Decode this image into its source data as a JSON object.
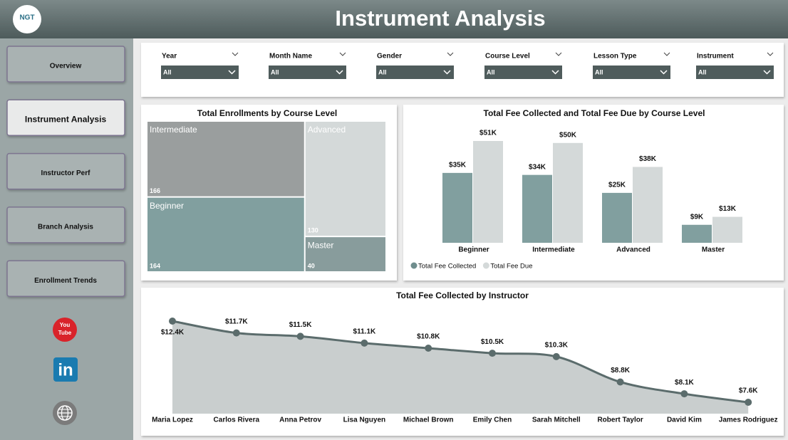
{
  "header": {
    "title": "Instrument Analysis",
    "logo": "NGT"
  },
  "nav": {
    "buttons": [
      "Overview",
      "Instrument Analysis",
      "Instructor Perf",
      "Branch Analysis",
      "Enrollment Trends"
    ],
    "icons": {
      "youtube": [
        "You",
        "Tube"
      ],
      "linkedin": "in"
    }
  },
  "filters": [
    {
      "label": "Year",
      "value": "All"
    },
    {
      "label": "Month Name",
      "value": "All"
    },
    {
      "label": "Gender",
      "value": "All"
    },
    {
      "label": "Course Level",
      "value": "All"
    },
    {
      "label": "Lesson Type",
      "value": "All"
    },
    {
      "label": "Instrument",
      "value": "All"
    }
  ],
  "chart_data": [
    {
      "type": "treemap",
      "title": "Total Enrollments by Course Level",
      "categories": [
        "Intermediate",
        "Beginner",
        "Advanced",
        "Master"
      ],
      "values": [
        166,
        164,
        130,
        40
      ],
      "colors": [
        "#9a9e9e",
        "#819f9f",
        "#d4d9d9",
        "#889c9c"
      ]
    },
    {
      "type": "bar",
      "title": "Total Fee Collected and Total Fee Due by Course Level",
      "categories": [
        "Beginner",
        "Intermediate",
        "Advanced",
        "Master"
      ],
      "series": [
        {
          "name": "Total Fee Collected",
          "color": "#819f9f",
          "values": [
            35000,
            34000,
            25000,
            9000
          ],
          "value_labels": [
            "$35K",
            "$34K",
            "$25K",
            "$9K"
          ]
        },
        {
          "name": "Total Fee Due",
          "color": "#d4d9d9",
          "values": [
            51000,
            50000,
            38000,
            13000
          ],
          "value_labels": [
            "$51K",
            "$50K",
            "$38K",
            "$13K"
          ]
        }
      ]
    },
    {
      "type": "area",
      "title": "Total Fee Collected by Instructor",
      "categories": [
        "Maria Lopez",
        "Carlos Rivera",
        "Anna Petrov",
        "Lisa Nguyen",
        "Michael Brown",
        "Emily Chen",
        "Sarah Mitchell",
        "Robert Taylor",
        "David Kim",
        "James Rodriguez"
      ],
      "values": [
        12400,
        11700,
        11500,
        11100,
        10800,
        10500,
        10300,
        8800,
        8100,
        7600
      ],
      "value_labels": [
        "$12.4K",
        "$11.7K",
        "$11.5K",
        "$11.1K",
        "$10.8K",
        "$10.5K",
        "$10.3K",
        "$8.8K",
        "$8.1K",
        "$7.6K"
      ],
      "color": "#c9cece",
      "line_color": "#5b6c6c"
    }
  ]
}
